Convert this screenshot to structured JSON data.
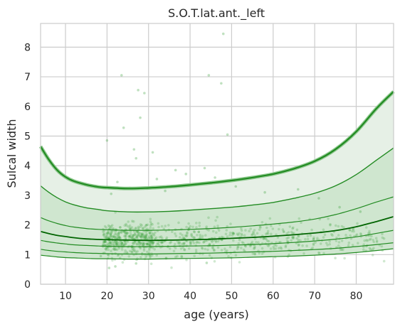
{
  "chart_data": {
    "type": "line",
    "title": "S.O.T.lat.ant._left",
    "xlabel": "age (years)",
    "ylabel": "Sulcal width",
    "xlim": [
      4,
      89
    ],
    "ylim": [
      0,
      8.8
    ],
    "xticks": [
      10,
      20,
      30,
      40,
      50,
      60,
      70,
      80
    ],
    "yticks": [
      0,
      1,
      2,
      3,
      4,
      5,
      6,
      7,
      8
    ],
    "grid": true,
    "colors": {
      "line": "#228b22",
      "median": "#006400",
      "outer_fill": "#e6f0e6",
      "inner_fill": "#cfe6cf",
      "points": "#2e9b2e"
    },
    "x": [
      4,
      6,
      8,
      10,
      12,
      15,
      18,
      20,
      25,
      30,
      35,
      40,
      45,
      50,
      55,
      60,
      65,
      70,
      75,
      80,
      85,
      89
    ],
    "series": [
      {
        "values": [
          4.65,
          4.2,
          3.85,
          3.62,
          3.48,
          3.36,
          3.28,
          3.26,
          3.23,
          3.25,
          3.29,
          3.35,
          3.42,
          3.5,
          3.6,
          3.72,
          3.9,
          4.15,
          4.55,
          5.15,
          5.95,
          6.5
        ]
      },
      {
        "values": [
          3.32,
          3.1,
          2.92,
          2.78,
          2.68,
          2.58,
          2.52,
          2.48,
          2.44,
          2.44,
          2.46,
          2.5,
          2.55,
          2.6,
          2.67,
          2.76,
          2.9,
          3.07,
          3.32,
          3.7,
          4.2,
          4.6
        ]
      },
      {
        "values": [
          2.25,
          2.14,
          2.05,
          1.98,
          1.93,
          1.88,
          1.85,
          1.84,
          1.82,
          1.82,
          1.83,
          1.85,
          1.88,
          1.92,
          1.97,
          2.03,
          2.1,
          2.2,
          2.35,
          2.55,
          2.78,
          2.95
        ]
      },
      {
        "values": [
          1.78,
          1.71,
          1.65,
          1.61,
          1.57,
          1.53,
          1.51,
          1.5,
          1.49,
          1.48,
          1.49,
          1.5,
          1.52,
          1.55,
          1.58,
          1.62,
          1.67,
          1.73,
          1.81,
          1.94,
          2.12,
          2.28
        ]
      },
      {
        "values": [
          1.48,
          1.43,
          1.39,
          1.36,
          1.33,
          1.31,
          1.29,
          1.28,
          1.27,
          1.27,
          1.28,
          1.29,
          1.3,
          1.32,
          1.34,
          1.37,
          1.41,
          1.46,
          1.52,
          1.6,
          1.72,
          1.82
        ]
      },
      {
        "values": [
          1.18,
          1.14,
          1.11,
          1.09,
          1.07,
          1.05,
          1.04,
          1.03,
          1.02,
          1.02,
          1.03,
          1.04,
          1.05,
          1.07,
          1.09,
          1.11,
          1.14,
          1.17,
          1.21,
          1.27,
          1.34,
          1.4
        ]
      },
      {
        "values": [
          0.98,
          0.95,
          0.92,
          0.9,
          0.89,
          0.87,
          0.86,
          0.86,
          0.85,
          0.85,
          0.86,
          0.87,
          0.88,
          0.89,
          0.91,
          0.93,
          0.95,
          0.98,
          1.02,
          1.07,
          1.14,
          1.2
        ]
      }
    ],
    "outliers": [
      {
        "x": 23.5,
        "y": 7.05
      },
      {
        "x": 27.5,
        "y": 6.55
      },
      {
        "x": 28,
        "y": 5.62
      },
      {
        "x": 24,
        "y": 5.28
      },
      {
        "x": 44.5,
        "y": 7.05
      },
      {
        "x": 47.5,
        "y": 6.78
      },
      {
        "x": 48,
        "y": 8.45
      },
      {
        "x": 29,
        "y": 6.45
      },
      {
        "x": 26.5,
        "y": 4.55
      },
      {
        "x": 31,
        "y": 4.45
      },
      {
        "x": 49,
        "y": 5.05
      },
      {
        "x": 20,
        "y": 4.85
      },
      {
        "x": 36.5,
        "y": 3.85
      },
      {
        "x": 43.5,
        "y": 3.92
      },
      {
        "x": 27,
        "y": 4.25
      },
      {
        "x": 32,
        "y": 3.55
      },
      {
        "x": 22.5,
        "y": 3.45
      },
      {
        "x": 39,
        "y": 3.72
      },
      {
        "x": 46,
        "y": 3.6
      },
      {
        "x": 51,
        "y": 3.3
      },
      {
        "x": 58,
        "y": 3.1
      },
      {
        "x": 25.5,
        "y": 3.25
      },
      {
        "x": 21,
        "y": 3.05
      },
      {
        "x": 34,
        "y": 3.15
      },
      {
        "x": 20.5,
        "y": 0.55
      },
      {
        "x": 22,
        "y": 0.6
      },
      {
        "x": 27,
        "y": 0.7
      },
      {
        "x": 44,
        "y": 0.72
      },
      {
        "x": 18.5,
        "y": 0.95
      },
      {
        "x": 66,
        "y": 3.2
      },
      {
        "x": 71,
        "y": 2.9
      },
      {
        "x": 76,
        "y": 2.6
      },
      {
        "x": 81,
        "y": 2.45
      }
    ]
  }
}
